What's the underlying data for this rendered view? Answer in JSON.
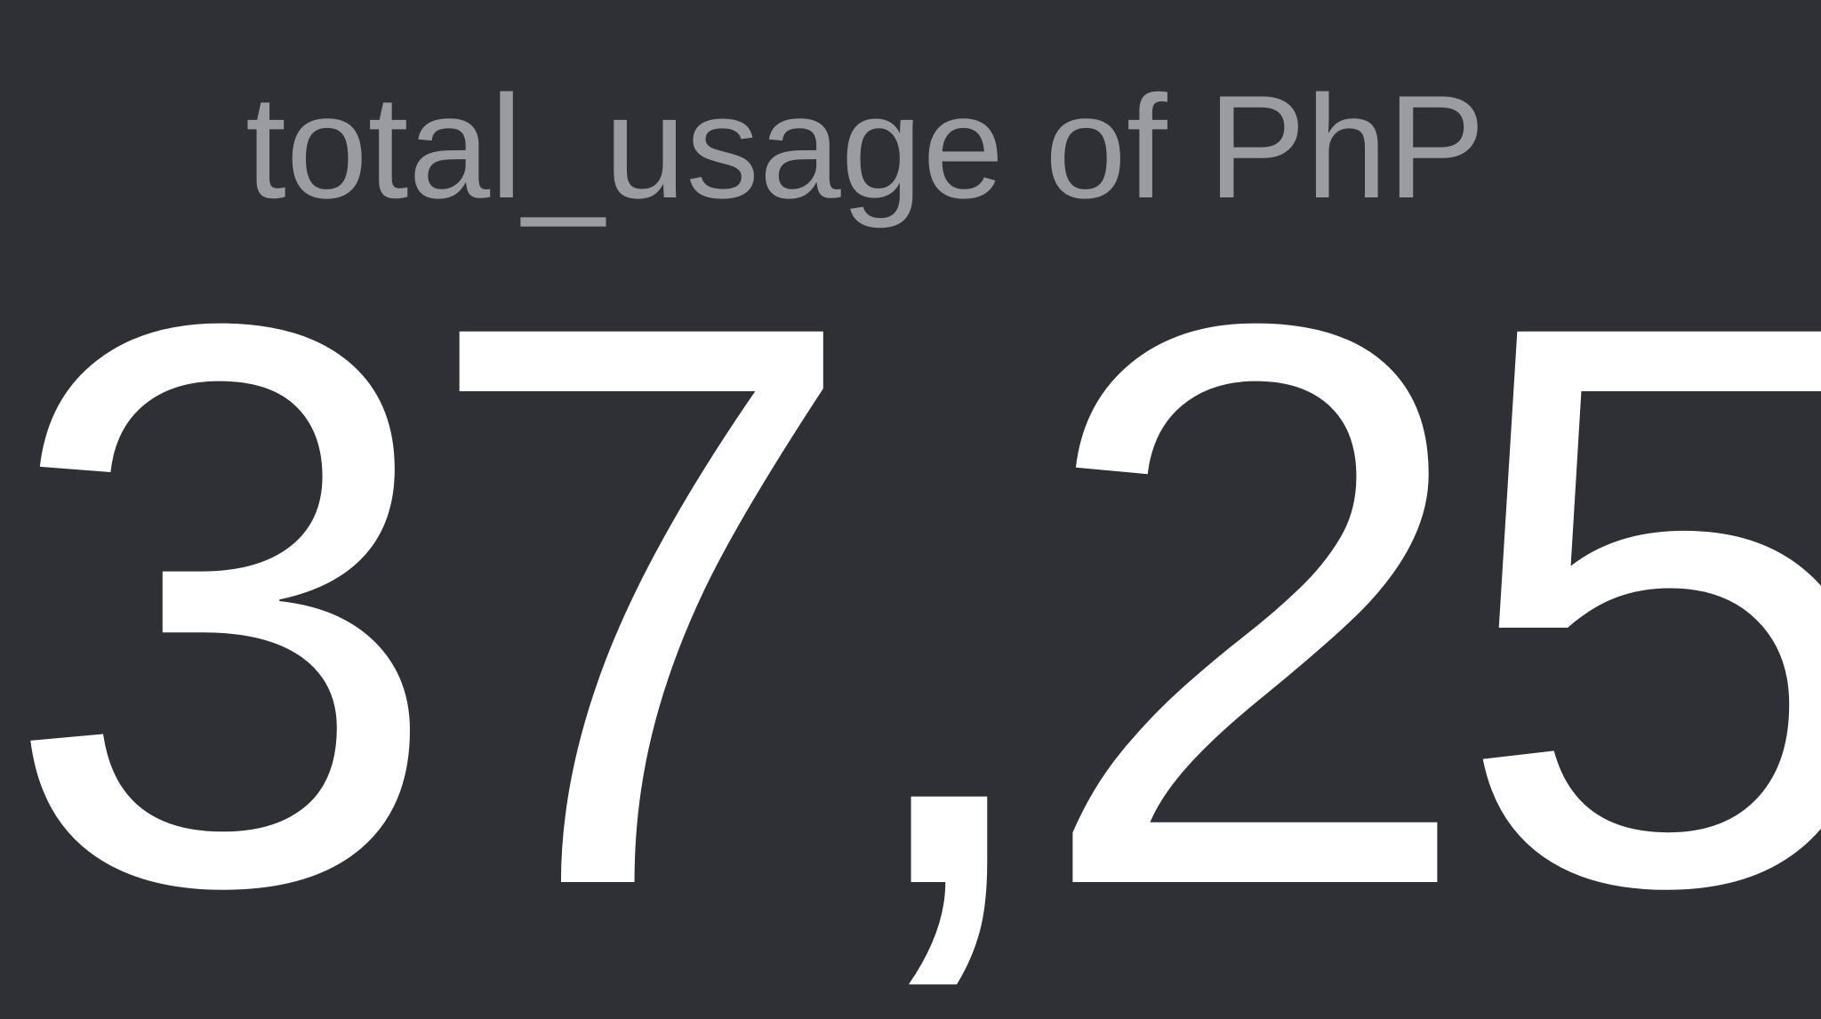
{
  "stat_panel": {
    "title": "total_usage of PhP",
    "value": "37,25"
  },
  "colors": {
    "background": "#2e3035",
    "title": "#9a9ca1",
    "value": "#ffffff"
  }
}
